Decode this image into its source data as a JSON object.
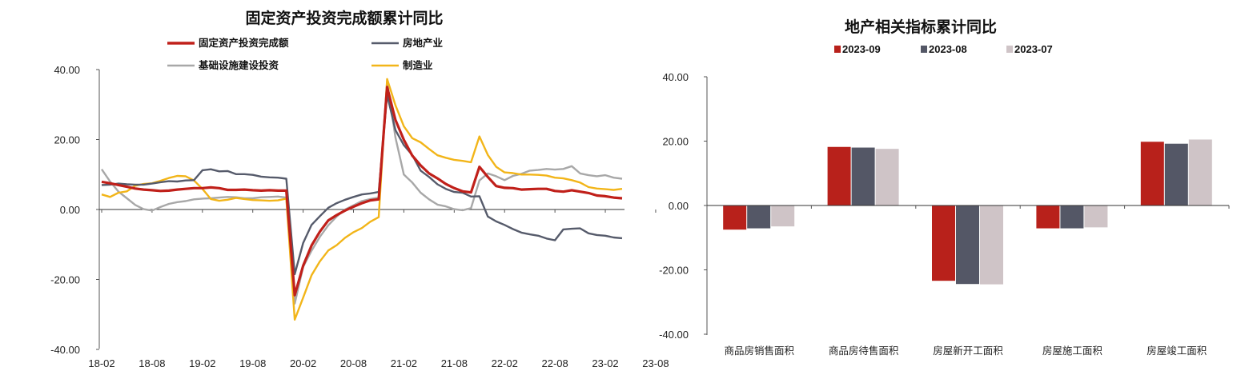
{
  "chart_data": [
    {
      "type": "line",
      "title": "固定资产投资完成额累计同比",
      "x_ticks": [
        "18-02",
        "18-08",
        "19-02",
        "19-08",
        "20-02",
        "20-08",
        "21-02",
        "21-08",
        "22-02",
        "22-08",
        "23-02",
        "23-08"
      ],
      "y_ticks": [
        "40.00",
        "20.00",
        "0.00",
        "-20.00",
        "-40.00"
      ],
      "ylim": [
        -40,
        40
      ],
      "legend_placement": "top",
      "series": [
        {
          "name": "固定资产投资完成额",
          "color": "#c0201a",
          "width": 3.2,
          "values": [
            7.9,
            7.5,
            7.0,
            6.5,
            6.0,
            5.7,
            5.5,
            5.3,
            5.4,
            5.7,
            5.9,
            6.1,
            6.1,
            6.3,
            6.1,
            5.6,
            5.6,
            5.7,
            5.5,
            5.4,
            5.5,
            5.4,
            5.4,
            -24.5,
            -16.1,
            -10.3,
            -6.3,
            -3.1,
            -1.6,
            -0.3,
            0.8,
            1.8,
            2.6,
            2.9,
            35.0,
            25.6,
            19.9,
            15.4,
            12.6,
            10.3,
            8.9,
            7.3,
            6.1,
            5.2,
            4.9,
            12.2,
            9.3,
            6.7,
            6.2,
            6.1,
            5.7,
            5.8,
            5.9,
            5.9,
            5.3,
            5.1,
            5.5,
            5.1,
            4.7,
            4.0,
            3.8,
            3.4,
            3.2
          ]
        },
        {
          "name": "房地产业",
          "color": "#565b6b",
          "width": 2.4,
          "values": [
            7.0,
            7.1,
            7.4,
            7.2,
            7.1,
            7.1,
            7.4,
            7.8,
            8.1,
            8.0,
            8.3,
            8.4,
            11.2,
            11.5,
            10.9,
            11.0,
            10.1,
            10.1,
            9.9,
            9.4,
            9.2,
            9.1,
            8.8,
            -18.5,
            -9.6,
            -4.4,
            -1.9,
            0.5,
            1.8,
            2.8,
            3.6,
            4.3,
            4.6,
            5.0,
            32.8,
            22.7,
            18.4,
            15.6,
            11.1,
            9.3,
            7.2,
            5.9,
            5.0,
            4.8,
            3.7,
            3.8,
            -2.0,
            -3.4,
            -4.4,
            -5.6,
            -6.6,
            -7.1,
            -7.5,
            -8.3,
            -8.8,
            -5.7,
            -5.5,
            -5.4,
            -6.8,
            -7.3,
            -7.5,
            -8.0,
            -8.2
          ]
        },
        {
          "name": "基础设施建设投资",
          "color": "#a8a8a8",
          "width": 2.4,
          "values": [
            11.5,
            8.0,
            5.1,
            3.2,
            1.3,
            0.1,
            -0.3,
            0.7,
            1.6,
            2.1,
            2.4,
            2.9,
            3.1,
            3.2,
            3.4,
            3.6,
            3.5,
            3.2,
            3.2,
            3.5,
            3.6,
            3.7,
            3.4,
            -26.9,
            -16.4,
            -11.8,
            -7.8,
            -4.5,
            -2.0,
            0.0,
            1.2,
            2.4,
            3.0,
            3.4,
            36.6,
            20.6,
            10.0,
            7.7,
            4.8,
            2.9,
            1.4,
            0.9,
            0.1,
            -0.2,
            0.4,
            8.3,
            10.3,
            9.5,
            8.4,
            9.6,
            10.2,
            11.1,
            11.3,
            11.6,
            11.4,
            11.6,
            12.4,
            10.3,
            9.8,
            9.5,
            9.8,
            9.1,
            8.8
          ]
        },
        {
          "name": "制造业",
          "color": "#f2b519",
          "width": 2.4,
          "values": [
            4.3,
            3.6,
            4.8,
            5.2,
            6.8,
            7.3,
            7.5,
            8.2,
            9.0,
            9.6,
            9.5,
            8.3,
            5.9,
            3.0,
            2.5,
            2.8,
            3.3,
            3.0,
            2.7,
            2.6,
            2.5,
            2.6,
            3.1,
            -31.5,
            -25.2,
            -18.8,
            -14.8,
            -11.7,
            -10.2,
            -8.1,
            -6.5,
            -5.3,
            -3.5,
            -2.2,
            37.3,
            29.8,
            23.8,
            20.4,
            19.2,
            17.3,
            15.5,
            14.8,
            14.2,
            13.9,
            13.5,
            20.9,
            15.6,
            12.2,
            10.6,
            10.4,
            10.0,
            10.0,
            9.9,
            9.7,
            9.1,
            8.9,
            8.4,
            7.7,
            6.4,
            6.0,
            5.8,
            5.6,
            5.9
          ]
        }
      ]
    },
    {
      "type": "bar",
      "title": "地产相关指标累计同比",
      "categories": [
        "商品房销售面积",
        "商品房待售面积",
        "房屋新开工面积",
        "房屋施工面积",
        "房屋竣工面积"
      ],
      "y_ticks": [
        "40.00",
        "20.00",
        "0.00",
        "-20.00",
        "-40.00"
      ],
      "ylim": [
        -40,
        40
      ],
      "legend_placement": "top",
      "series": [
        {
          "name": "2023-09",
          "color": "#b8211b",
          "values": [
            -7.5,
            18.2,
            -23.4,
            -7.1,
            19.8
          ]
        },
        {
          "name": "2023-08",
          "color": "#545766",
          "values": [
            -7.1,
            18.0,
            -24.4,
            -7.1,
            19.2
          ]
        },
        {
          "name": "2023-07",
          "color": "#cfc4c7",
          "values": [
            -6.5,
            17.6,
            -24.5,
            -6.8,
            20.5
          ]
        }
      ]
    }
  ]
}
